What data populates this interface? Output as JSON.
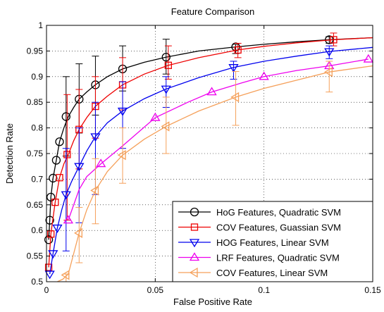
{
  "chart_data": {
    "type": "line",
    "title": "Feature Comparison",
    "xlabel": "False Positive Rate",
    "ylabel": "Detection Rate",
    "xlim": [
      0,
      0.15
    ],
    "ylim": [
      0.5,
      1.0
    ],
    "xticks": [
      0,
      0.05,
      0.1,
      0.15
    ],
    "xtick_labels": [
      "0",
      "0.05",
      "0.1",
      "0.15"
    ],
    "yticks": [
      0.5,
      0.55,
      0.6,
      0.65,
      0.7,
      0.75,
      0.8,
      0.85,
      0.9,
      0.95,
      1.0
    ],
    "ytick_labels": [
      "0.5",
      "0.55",
      "0.6",
      "0.65",
      "0.7",
      "0.75",
      "0.8",
      "0.85",
      "0.9",
      "0.95",
      "1"
    ],
    "grid": true,
    "legend_position": "bottom-right",
    "series": [
      {
        "name": "HoG Features, Quadratic SVM",
        "color": "#000000",
        "marker": "circle",
        "curve_x": [
          0.001,
          0.0015,
          0.002,
          0.003,
          0.0045,
          0.006,
          0.008,
          0.01,
          0.0125,
          0.015,
          0.0185,
          0.0225,
          0.028,
          0.035,
          0.045,
          0.055,
          0.07,
          0.087,
          0.1,
          0.115,
          0.13,
          0.15
        ],
        "curve_y": [
          0.582,
          0.62,
          0.665,
          0.702,
          0.737,
          0.773,
          0.8,
          0.822,
          0.84,
          0.856,
          0.87,
          0.884,
          0.9,
          0.915,
          0.928,
          0.938,
          0.95,
          0.958,
          0.963,
          0.968,
          0.972,
          0.976
        ],
        "marker_x": [
          0.001,
          0.0015,
          0.002,
          0.003,
          0.0045,
          0.006,
          0.009,
          0.015,
          0.0225,
          0.035,
          0.055,
          0.087,
          0.13
        ],
        "marker_y": [
          0.582,
          0.62,
          0.665,
          0.702,
          0.737,
          0.773,
          0.822,
          0.856,
          0.884,
          0.915,
          0.938,
          0.958,
          0.972
        ],
        "error_x": [
          0.009,
          0.015,
          0.0225,
          0.035,
          0.055,
          0.087,
          0.13
        ],
        "error_y": [
          0.822,
          0.856,
          0.884,
          0.915,
          0.938,
          0.958,
          0.972
        ],
        "error_low": [
          0.745,
          0.79,
          0.825,
          0.872,
          0.905,
          0.945,
          0.965
        ],
        "error_high": [
          0.9,
          0.925,
          0.94,
          0.96,
          0.973,
          0.963,
          0.978
        ]
      },
      {
        "name": "COV Features, Guassian SVM",
        "color": "#ee0000",
        "marker": "square",
        "curve_x": [
          0.001,
          0.002,
          0.004,
          0.006,
          0.008,
          0.01,
          0.0125,
          0.015,
          0.0185,
          0.0225,
          0.028,
          0.035,
          0.045,
          0.056,
          0.07,
          0.088,
          0.1,
          0.115,
          0.132,
          0.15
        ],
        "curve_y": [
          0.528,
          0.593,
          0.655,
          0.703,
          0.73,
          0.748,
          0.775,
          0.797,
          0.82,
          0.842,
          0.862,
          0.884,
          0.905,
          0.922,
          0.937,
          0.952,
          0.959,
          0.966,
          0.972,
          0.976
        ],
        "marker_x": [
          0.001,
          0.002,
          0.004,
          0.006,
          0.0095,
          0.015,
          0.0225,
          0.035,
          0.056,
          0.088,
          0.132
        ],
        "marker_y": [
          0.528,
          0.593,
          0.655,
          0.703,
          0.748,
          0.797,
          0.842,
          0.884,
          0.922,
          0.952,
          0.972
        ],
        "error_x": [
          0.0095,
          0.015,
          0.0225,
          0.035,
          0.056,
          0.088,
          0.132
        ],
        "error_y": [
          0.748,
          0.797,
          0.842,
          0.884,
          0.922,
          0.952,
          0.972
        ],
        "error_low": [
          0.62,
          0.72,
          0.78,
          0.835,
          0.895,
          0.937,
          0.96
        ],
        "error_high": [
          0.865,
          0.875,
          0.9,
          0.937,
          0.96,
          0.965,
          0.985
        ]
      },
      {
        "name": "HOG Features, Linear SVM",
        "color": "#0000ee",
        "marker": "triangle-down",
        "curve_x": [
          0.0015,
          0.003,
          0.005,
          0.007,
          0.009,
          0.0115,
          0.015,
          0.0185,
          0.0225,
          0.028,
          0.035,
          0.045,
          0.055,
          0.07,
          0.086,
          0.1,
          0.115,
          0.13,
          0.15
        ],
        "curve_y": [
          0.515,
          0.555,
          0.605,
          0.64,
          0.67,
          0.695,
          0.725,
          0.755,
          0.783,
          0.81,
          0.833,
          0.857,
          0.876,
          0.898,
          0.918,
          0.93,
          0.94,
          0.949,
          0.957
        ],
        "marker_x": [
          0.0015,
          0.003,
          0.005,
          0.009,
          0.015,
          0.0225,
          0.035,
          0.055,
          0.086,
          0.13
        ],
        "marker_y": [
          0.515,
          0.555,
          0.605,
          0.67,
          0.725,
          0.783,
          0.833,
          0.876,
          0.918,
          0.949
        ],
        "error_x": [
          0.009,
          0.015,
          0.0225,
          0.035,
          0.055,
          0.086,
          0.13
        ],
        "error_y": [
          0.67,
          0.725,
          0.783,
          0.833,
          0.876,
          0.918,
          0.949
        ],
        "error_low": [
          0.56,
          0.615,
          0.67,
          0.76,
          0.84,
          0.895,
          0.935
        ],
        "error_high": [
          0.76,
          0.8,
          0.85,
          0.89,
          0.9,
          0.93,
          0.96
        ]
      },
      {
        "name": "LRF Features, Quadratic SVM",
        "color": "#ee00ee",
        "marker": "triangle-up",
        "curve_x": [
          0.01,
          0.0125,
          0.015,
          0.0185,
          0.025,
          0.035,
          0.05,
          0.065,
          0.076,
          0.09,
          0.1,
          0.115,
          0.13,
          0.148
        ],
        "curve_y": [
          0.62,
          0.65,
          0.68,
          0.705,
          0.73,
          0.765,
          0.82,
          0.85,
          0.87,
          0.888,
          0.9,
          0.912,
          0.921,
          0.934
        ],
        "marker_x": [
          0.01,
          0.025,
          0.05,
          0.076,
          0.1,
          0.13,
          0.148
        ],
        "marker_y": [
          0.62,
          0.73,
          0.82,
          0.87,
          0.9,
          0.921,
          0.934
        ],
        "error_x": [],
        "error_y": [],
        "error_low": [],
        "error_high": []
      },
      {
        "name": "COV Features, Linear SVM",
        "color": "#f5a05a",
        "marker": "triangle-left",
        "curve_x": [
          0.005,
          0.0075,
          0.01,
          0.0125,
          0.015,
          0.0185,
          0.0225,
          0.028,
          0.035,
          0.045,
          0.055,
          0.07,
          0.087,
          0.1,
          0.115,
          0.13,
          0.15
        ],
        "curve_y": [
          0.5,
          0.505,
          0.515,
          0.555,
          0.595,
          0.64,
          0.678,
          0.715,
          0.747,
          0.778,
          0.803,
          0.833,
          0.86,
          0.877,
          0.893,
          0.909,
          0.921
        ],
        "marker_x": [
          0.009,
          0.015,
          0.0225,
          0.035,
          0.055,
          0.087,
          0.13
        ],
        "marker_y": [
          0.513,
          0.595,
          0.678,
          0.747,
          0.803,
          0.86,
          0.909
        ],
        "error_x": [
          0.009,
          0.015,
          0.0225,
          0.035,
          0.055,
          0.087,
          0.13
        ],
        "error_y": [
          0.513,
          0.595,
          0.678,
          0.747,
          0.803,
          0.86,
          0.909
        ],
        "error_low": [
          0.5,
          0.537,
          0.613,
          0.692,
          0.75,
          0.805,
          0.87
        ],
        "error_high": [
          0.515,
          0.645,
          0.74,
          0.8,
          0.86,
          0.91,
          0.93
        ]
      }
    ]
  }
}
